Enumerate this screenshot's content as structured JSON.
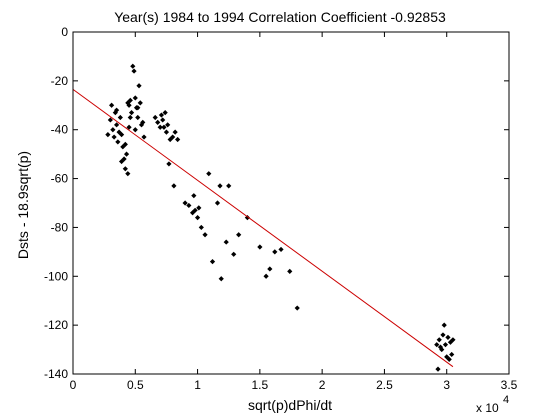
{
  "chart_data": {
    "type": "scatter",
    "title": "Year(s) 1984 to 1994 Correlation Coefficient -0.92853",
    "xlabel": "sqrt(p)dPhi/dt",
    "ylabel": "Dsts - 18.9sqrt(p)",
    "x_multiplier_label": "x 10",
    "x_multiplier_exponent": "4",
    "xlim": [
      0,
      35000
    ],
    "ylim": [
      -140,
      0
    ],
    "x_ticks": [
      0,
      5000,
      10000,
      15000,
      20000,
      25000,
      30000,
      35000
    ],
    "x_tick_labels": [
      "0",
      "0.5",
      "1",
      "1.5",
      "2",
      "2.5",
      "3",
      "3.5"
    ],
    "y_ticks": [
      0,
      -20,
      -40,
      -60,
      -80,
      -100,
      -120,
      -140
    ],
    "y_tick_labels": [
      "0",
      "-20",
      "-40",
      "-60",
      "-80",
      "-100",
      "-120",
      "-140"
    ],
    "grid": false,
    "marker_color": "#000000",
    "fit_line_color": "#cc0000",
    "fit_line": {
      "x": [
        0,
        30500
      ],
      "y": [
        -23.5,
        -137
      ]
    },
    "points": [
      [
        2800,
        -42
      ],
      [
        3000,
        -36
      ],
      [
        3100,
        -30
      ],
      [
        3200,
        -40
      ],
      [
        3300,
        -43
      ],
      [
        3400,
        -33
      ],
      [
        3500,
        -38
      ],
      [
        3600,
        -45
      ],
      [
        3700,
        -41
      ],
      [
        3800,
        -35
      ],
      [
        3900,
        -42
      ],
      [
        4000,
        -47
      ],
      [
        4100,
        -52
      ],
      [
        4200,
        -56
      ],
      [
        4300,
        -50
      ],
      [
        4400,
        -58
      ],
      [
        4500,
        -39
      ],
      [
        4500,
        -30
      ],
      [
        4600,
        -28
      ],
      [
        4700,
        -33
      ],
      [
        4800,
        -14
      ],
      [
        4900,
        -16
      ],
      [
        5000,
        -27
      ],
      [
        5100,
        -31
      ],
      [
        5200,
        -35
      ],
      [
        5300,
        -22
      ],
      [
        5400,
        -29
      ],
      [
        5500,
        -38
      ],
      [
        5600,
        -37
      ],
      [
        5700,
        -43
      ],
      [
        4200,
        -46
      ],
      [
        3900,
        -53
      ],
      [
        4600,
        -35
      ],
      [
        5000,
        -40
      ],
      [
        3500,
        -32
      ],
      [
        4400,
        -29
      ],
      [
        5200,
        -31
      ],
      [
        6600,
        -35
      ],
      [
        6800,
        -37
      ],
      [
        7000,
        -39
      ],
      [
        7100,
        -34
      ],
      [
        7200,
        -36
      ],
      [
        7300,
        -39
      ],
      [
        7400,
        -33
      ],
      [
        7500,
        -41
      ],
      [
        7600,
        -38
      ],
      [
        7800,
        -44
      ],
      [
        8000,
        -43
      ],
      [
        8200,
        -41
      ],
      [
        8400,
        -44
      ],
      [
        7700,
        -54
      ],
      [
        8100,
        -63
      ],
      [
        9000,
        -70
      ],
      [
        9300,
        -71
      ],
      [
        9600,
        -74
      ],
      [
        9700,
        -67
      ],
      [
        9800,
        -73
      ],
      [
        10000,
        -76
      ],
      [
        10100,
        -72
      ],
      [
        10300,
        -80
      ],
      [
        10600,
        -83
      ],
      [
        10900,
        -58
      ],
      [
        11200,
        -94
      ],
      [
        11600,
        -70
      ],
      [
        11800,
        -63
      ],
      [
        11900,
        -101
      ],
      [
        12300,
        -86
      ],
      [
        12500,
        -63
      ],
      [
        12900,
        -91
      ],
      [
        13300,
        -83
      ],
      [
        14000,
        -76
      ],
      [
        15000,
        -88
      ],
      [
        15500,
        -100
      ],
      [
        15800,
        -97
      ],
      [
        16200,
        -90
      ],
      [
        16700,
        -89
      ],
      [
        17400,
        -98
      ],
      [
        18000,
        -113
      ],
      [
        29200,
        -128
      ],
      [
        29300,
        -138
      ],
      [
        29400,
        -126
      ],
      [
        29500,
        -129
      ],
      [
        29700,
        -124
      ],
      [
        29800,
        -120
      ],
      [
        29900,
        -128
      ],
      [
        30000,
        -133
      ],
      [
        30100,
        -125
      ],
      [
        30200,
        -134
      ],
      [
        30300,
        -127
      ],
      [
        30400,
        -132
      ],
      [
        30500,
        -126
      ],
      [
        29600,
        -130
      ]
    ]
  }
}
